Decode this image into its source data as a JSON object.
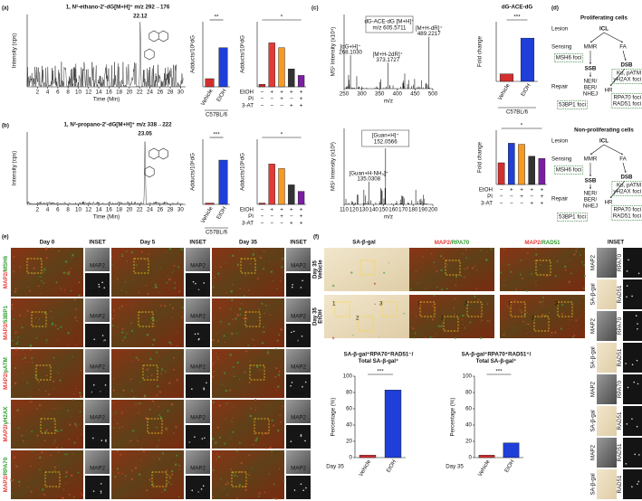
{
  "panels": {
    "a": {
      "label": "(a)",
      "title": "1, N²-ethano-2'-dG[M+H]⁺ m/z 292→176",
      "peak": "22.12",
      "chrom": {
        "ylabel": "Intensity (cps)",
        "xlabel": "Time (Min)",
        "xticks": [
          "2",
          "4",
          "6",
          "8",
          "10",
          "12",
          "14",
          "16",
          "18",
          "20",
          "22",
          "24",
          "26",
          "28",
          "30"
        ]
      },
      "bar1": {
        "ylabel": "Adducts/10⁸dG",
        "categories": [
          "Vehicle",
          "EtOH"
        ],
        "values": [
          1.0,
          4.8
        ],
        "colors": [
          "#d32f2f",
          "#1f3fd8"
        ],
        "ylim": [
          0,
          8
        ],
        "sig": "**",
        "group": "C57BL/6"
      },
      "bar2": {
        "ylabel": "Adducts/10⁸dG",
        "values": [
          1.5,
          27,
          24,
          11,
          7
        ],
        "colors": [
          "#c62828",
          "#e53935",
          "#f59a23",
          "#333333",
          "#7b1fa2"
        ],
        "ylim": [
          0,
          40
        ],
        "sig": "*",
        "treatments": [
          {
            "label": "EtOH",
            "signs": [
              "−",
              "+",
              "+",
              "+",
              "+"
            ]
          },
          {
            "label": "PI",
            "signs": [
              "−",
              "−",
              "+",
              "−",
              "+"
            ]
          },
          {
            "label": "3-AT",
            "signs": [
              "−",
              "−",
              "−",
              "+",
              "+"
            ]
          }
        ]
      }
    },
    "b": {
      "label": "(b)",
      "title": "1, N²-propano-2'-dG[M+H]⁺ m/z 338→222",
      "peak": "23.05",
      "chrom": {
        "ylabel": "Intensity (cps)",
        "xlabel": "Time (Min)",
        "xticks": [
          "2",
          "4",
          "6",
          "8",
          "10",
          "12",
          "14",
          "16",
          "18",
          "20",
          "22",
          "24",
          "26",
          "28",
          "30"
        ]
      },
      "bar1": {
        "ylabel": "Adducts/10⁸dG",
        "categories": [
          "Vehicle",
          "EtOH"
        ],
        "values": [
          0.5,
          17
        ],
        "colors": [
          "#d32f2f",
          "#1f3fd8"
        ],
        "ylim": [
          0,
          25
        ],
        "sig": "***",
        "group": "C57BL/6"
      },
      "bar2": {
        "ylabel": "Adducts/10⁸dG",
        "values": [
          2,
          62,
          55,
          30,
          20
        ],
        "colors": [
          "#c62828",
          "#e53935",
          "#f59a23",
          "#333333",
          "#7b1fa2"
        ],
        "ylim": [
          0,
          100
        ],
        "sig": "*",
        "treatments": [
          {
            "label": "EtOH",
            "signs": [
              "−",
              "+",
              "+",
              "+",
              "+"
            ]
          },
          {
            "label": "PI",
            "signs": [
              "−",
              "−",
              "+",
              "−",
              "+"
            ]
          },
          {
            "label": "3-AT",
            "signs": [
              "−",
              "−",
              "−",
              "+",
              "+"
            ]
          }
        ]
      }
    },
    "c": {
      "label": "(c)",
      "spec1": {
        "ylabel": "MS¹ Intensity (x10⁴)",
        "xlabel": "m/z",
        "xticks": [
          "250",
          "300",
          "350",
          "400",
          "450",
          "500"
        ],
        "box": [
          "dG-ACE-dG [M+H]⁺",
          "m/z 605.5711"
        ],
        "peaks": [
          [
            "[dG+H]⁺",
            "268.1030"
          ],
          [
            "[M+H-2dR]⁺",
            "373.1727"
          ],
          [
            "[M+H-dR]⁺",
            "489.2217"
          ]
        ]
      },
      "spec2": {
        "ylabel": "MS¹ Intensity (x10³)",
        "xlabel": "m/z",
        "xticks": [
          "110",
          "120",
          "130",
          "140",
          "150",
          "160",
          "170",
          "180",
          "190",
          "200"
        ],
        "box": [
          "[Guan+H]⁺",
          "152.0566"
        ],
        "peaks": [
          [
            "[Guan+H-NH₃]⁺",
            "135.0308"
          ]
        ]
      },
      "bar1": {
        "title": [
          "dG-ACE-dG"
        ],
        "ylabel": "Fold change",
        "categories": [
          "Vehicle",
          "EtOH"
        ],
        "values": [
          1,
          5.8
        ],
        "colors": [
          "#d32f2f",
          "#1f3fd8"
        ],
        "ylim": [
          0,
          8
        ],
        "sig": "***",
        "group": "C57BL/6"
      },
      "bar2": {
        "ylabel": "Fold change",
        "values": [
          1,
          1.9,
          1.85,
          1.3,
          1.2
        ],
        "colors": [
          "#d32f2f",
          "#1f3fd8",
          "#f59a23",
          "#333333",
          "#7b1fa2"
        ],
        "ylim": [
          0,
          2.5
        ],
        "sig": "*",
        "treatments": [
          {
            "label": "EtOH",
            "signs": [
              "−",
              "+",
              "+",
              "+",
              "+"
            ]
          },
          {
            "label": "PI",
            "signs": [
              "−",
              "−",
              "+",
              "−",
              "+"
            ]
          },
          {
            "label": "3-AT",
            "signs": [
              "−",
              "−",
              "−",
              "+",
              "+"
            ]
          }
        ]
      }
    },
    "d": {
      "label": "(d)",
      "prolif": {
        "title": "Proliferating cells",
        "lesion": "Lesion",
        "icl": "ICL",
        "sensing": "Sensing",
        "mmr": "MMR",
        "fa": "FA",
        "msh6": [
          "MSH6 foci"
        ],
        "ssb": "SSB",
        "dsb": "DSB",
        "ku": [
          "Ku, pATM",
          "γH2AX foci"
        ],
        "repair": "Repair",
        "ner": [
          "NER/",
          "BER/",
          "NHEJ"
        ],
        "hr": "HR",
        "rpa": [
          "RPA70 foci",
          "RAD51 foci"
        ],
        "bp1": [
          "53BP1 foci"
        ]
      },
      "nonprolif": {
        "title": "Non-proliferating cells",
        "lesion": "Lesion",
        "icl": "ICL",
        "sensing": "Sensing",
        "mmr": "MMR",
        "fa": "FA",
        "msh6": [
          "MSH6 foci"
        ],
        "ssb": "SSB",
        "dsb": "DSB",
        "ku": [
          "Ku, pATM",
          "γH2AX foci"
        ],
        "repair": "Repair",
        "ner": [
          "NER/",
          "BER/",
          "NHEJ"
        ],
        "hr": "HR",
        "rpa": [
          "RPA70 foci",
          "RAD51 foci"
        ],
        "bp1": [
          "53BP1 foci"
        ]
      }
    },
    "e": {
      "label": "(e)",
      "columns": [
        "Day 0",
        "Day 5",
        "Day 35"
      ],
      "inset": "INSET",
      "rows": [
        {
          "label": [
            "MAP2/",
            "MSH6"
          ],
          "inset": [
            "MAP2",
            "MSH6"
          ]
        },
        {
          "label": [
            "MAP2/",
            "53BP1"
          ],
          "inset": [
            "MAP2",
            "53BP1"
          ]
        },
        {
          "label": [
            "MAP2/",
            "pATM"
          ],
          "inset": [
            "MAP2",
            "pATM"
          ]
        },
        {
          "label": [
            "MAP2/",
            "γH2AX"
          ],
          "inset": [
            "MAP2",
            "γH2AX"
          ]
        },
        {
          "label": [
            "MAP2/",
            "RPA70"
          ],
          "inset": [
            "MAP2",
            "RPA70"
          ]
        }
      ]
    },
    "f": {
      "label": "(f)",
      "sa": "SA-β-gal",
      "rpa": [
        "MAP2/",
        "RPA70"
      ],
      "rad": [
        "MAP2/",
        "RAD51"
      ],
      "inset": "INSET",
      "rows": [
        [
          "Day 35",
          "Vehicle"
        ],
        [
          "Day 35",
          "EtOH"
        ]
      ],
      "regions": [
        "1",
        "2",
        "3"
      ],
      "inset_rows": [
        [
          "MAP2",
          "RPA70"
        ],
        [
          "SA-β-gal",
          "RAD51"
        ],
        [
          "MAP2",
          "RPA70"
        ],
        [
          "SA-β-gal",
          "RAD51"
        ],
        [
          "MAP2",
          "RPA70"
        ],
        [
          "SA-β-gal",
          "RAD51"
        ],
        [
          "MAP2",
          "RAD51"
        ],
        [
          "SA-β-gal",
          "RAD51"
        ]
      ],
      "chart1": {
        "title": [
          "SA-β-gal⁺RPA70⁺RAD51⁻/",
          "Total SA-β-gal⁺"
        ],
        "ylabel": "Percentage (%)",
        "categories": [
          "Vehicle",
          "EtOH"
        ],
        "values": [
          3,
          83
        ],
        "colors": [
          "#d32f2f",
          "#1f3fd8"
        ],
        "ylim": [
          0,
          100
        ],
        "yticks": [
          0,
          20,
          40,
          60,
          80,
          100
        ],
        "sig": "***",
        "day": "Day 35"
      },
      "chart2": {
        "title": [
          "SA-β-gal⁺RPA70⁺RAD51⁺/",
          "Total SA-β-gal⁺"
        ],
        "ylabel": "Percentage (%)",
        "categories": [
          "Vehicle",
          "EtOH"
        ],
        "values": [
          3,
          18
        ],
        "colors": [
          "#d32f2f",
          "#1f3fd8"
        ],
        "ylim": [
          0,
          100
        ],
        "yticks": [
          0,
          20,
          40,
          60,
          80,
          100
        ],
        "sig": "***",
        "day": "Day 35"
      }
    }
  }
}
